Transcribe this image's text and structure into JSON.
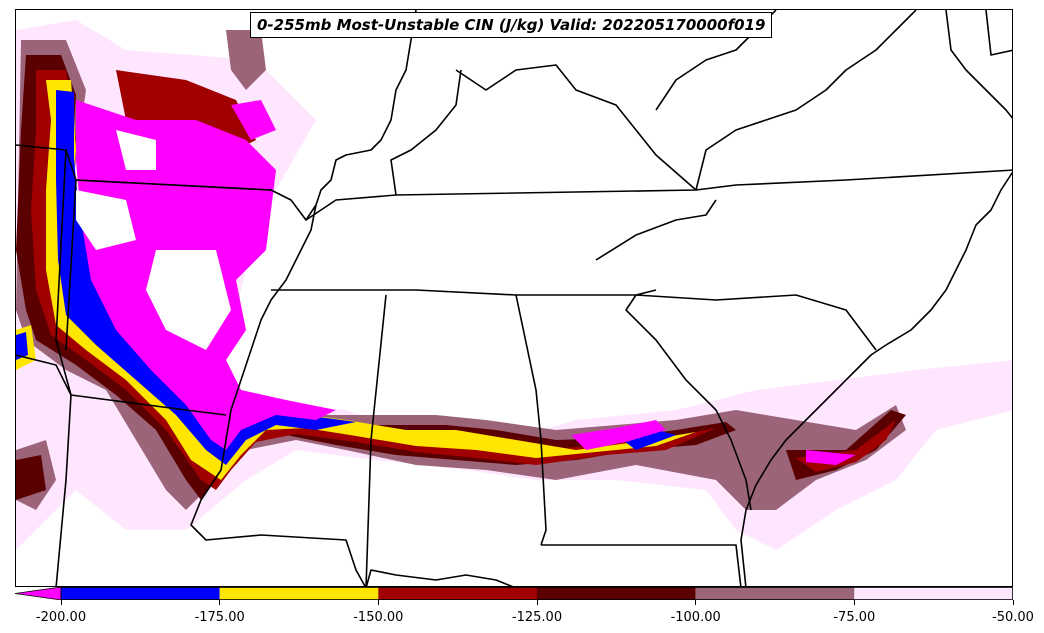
{
  "title": "0-255mb Most-Unstable CIN (J/kg) Valid: 202205170000f019",
  "colorbar": {
    "min": -200,
    "max": -50,
    "extend": "min",
    "bins": [
      {
        "from": -200,
        "to": -175,
        "color": "#0000ff"
      },
      {
        "from": -175,
        "to": -150,
        "color": "#ffe600"
      },
      {
        "from": -150,
        "to": -125,
        "color": "#a00000"
      },
      {
        "from": -125,
        "to": -100,
        "color": "#5a0000"
      },
      {
        "from": -100,
        "to": -75,
        "color": "#9b6478"
      },
      {
        "from": -75,
        "to": -50,
        "color": "#ffe6ff"
      }
    ],
    "extend_color": "#ff00ff",
    "tick_labels": [
      "-200.00",
      "-175.00",
      "-150.00",
      "-125.00",
      "-100.00",
      "-75.00",
      "-50.00"
    ]
  },
  "colors": {
    "below_min": "#ff00ff",
    "border": "#000000"
  }
}
